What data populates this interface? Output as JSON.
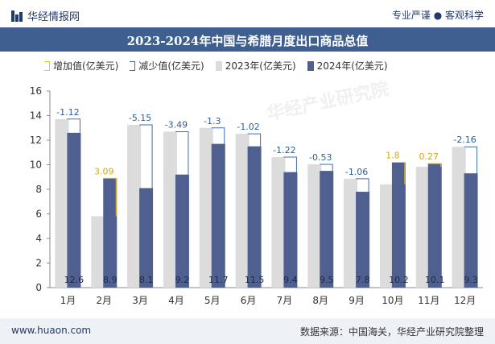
{
  "header": {
    "site_name": "华经情报网",
    "tagline": "专业严谨 ● 客观科学"
  },
  "footer": {
    "website": "www.huaon.com",
    "source": "数据来源：中国海关，华经产业研究院整理"
  },
  "colors": {
    "title_bar": "#3f5f91",
    "bar_2023": "#dcdcdc",
    "bar_2024": "#4e5f90",
    "increase": "#f5c518",
    "decrease": "#3f6fa8"
  },
  "chart_data": {
    "type": "bar",
    "title": "2023-2024年中国与希腊月度出口商品总值",
    "categories": [
      "1月",
      "2月",
      "3月",
      "4月",
      "5月",
      "6月",
      "7月",
      "8月",
      "9月",
      "10月",
      "11月",
      "12月"
    ],
    "series": [
      {
        "name": "2023年(亿美元)",
        "values": [
          13.72,
          5.81,
          13.25,
          12.69,
          13.0,
          12.52,
          10.62,
          10.03,
          8.86,
          8.4,
          9.83,
          11.46
        ]
      },
      {
        "name": "2024年(亿美元)",
        "values": [
          12.6,
          8.9,
          8.1,
          9.2,
          11.7,
          11.5,
          9.4,
          9.5,
          7.8,
          10.2,
          10.1,
          9.3
        ]
      }
    ],
    "change_labels": [
      "-1.12",
      "3.09",
      "-5.15",
      "-3.49",
      "-1.3",
      "-1.02",
      "-1.22",
      "-0.53",
      "-1.06",
      "1.8",
      "0.27",
      "-2.16"
    ],
    "value_labels_2024": [
      "12.6",
      "8.9",
      "8.1",
      "9.2",
      "11.7",
      "11.5",
      "9.4",
      "9.5",
      "7.8",
      "10.2",
      "10.1",
      "9.3"
    ],
    "legend": [
      "增加值(亿美元)",
      "减少值(亿美元)",
      "2023年(亿美元)",
      "2024年(亿美元)"
    ],
    "y_ticks": [
      "0",
      "2",
      "4",
      "6",
      "8",
      "10",
      "12",
      "14",
      "16"
    ],
    "ylim": [
      0,
      16
    ],
    "xlabel": "",
    "ylabel": ""
  },
  "watermark": "华经产业研究院"
}
